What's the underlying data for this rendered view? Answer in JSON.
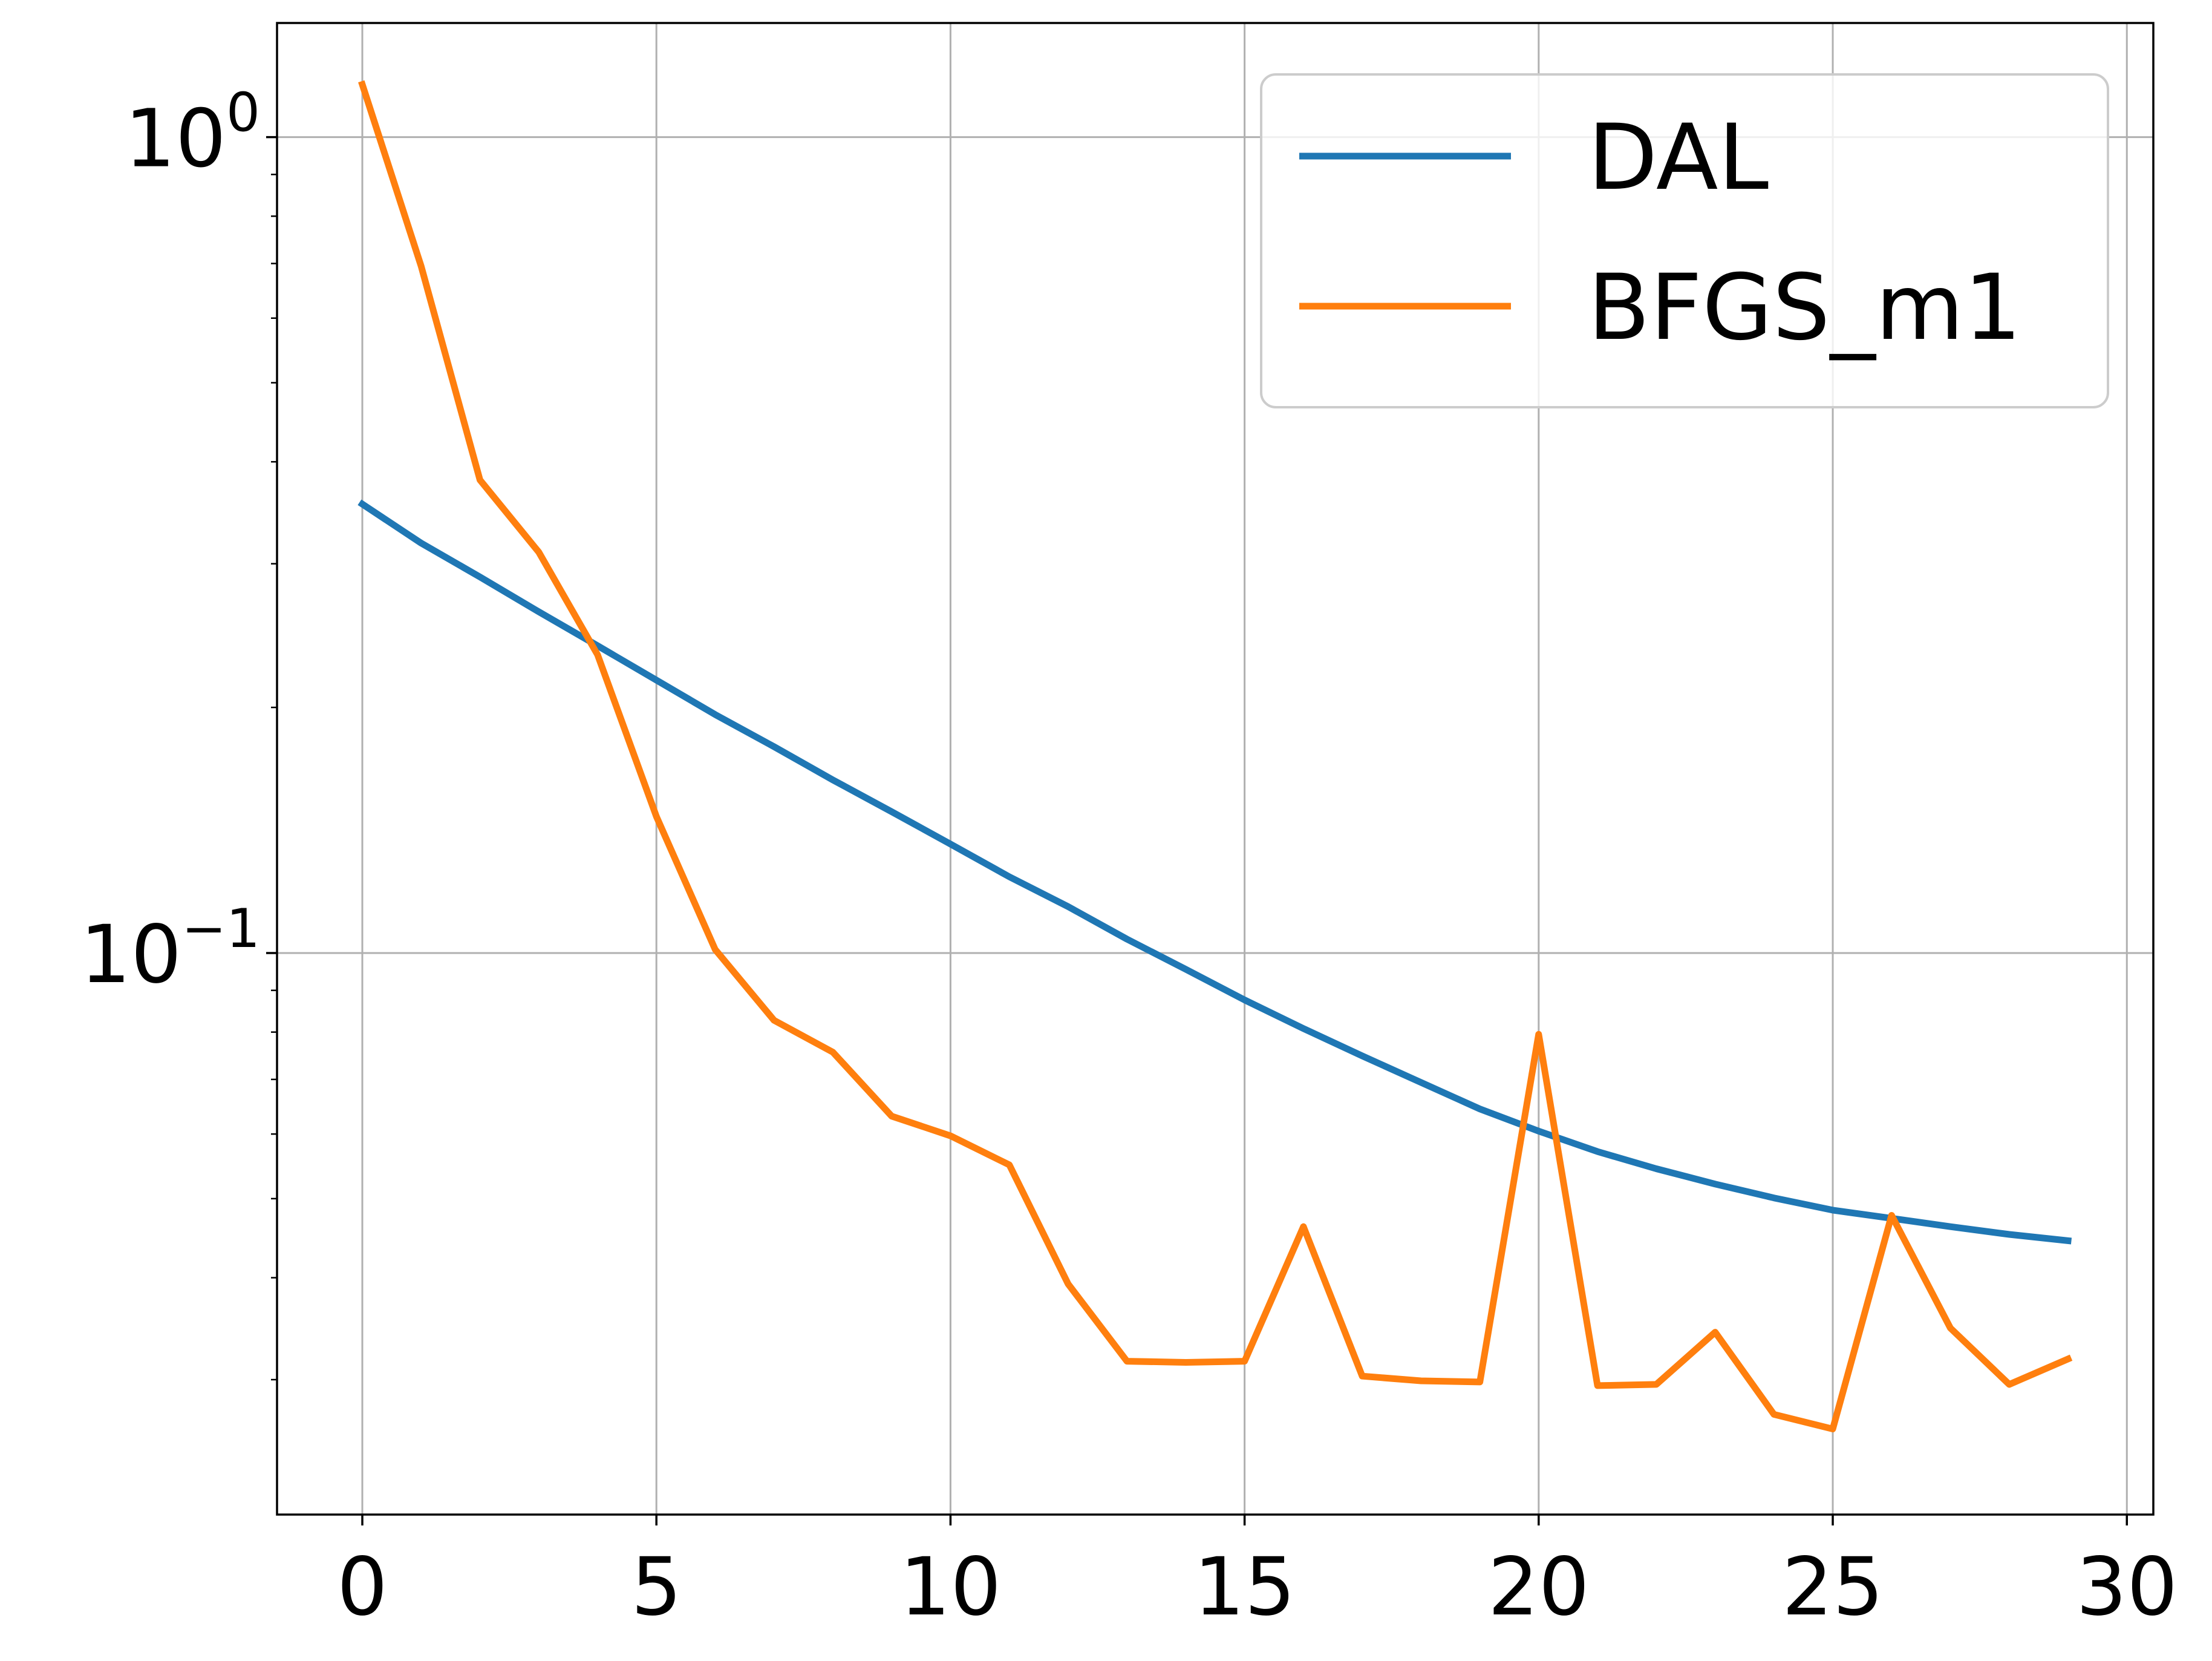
{
  "chart_data": {
    "type": "line",
    "title": "",
    "xlabel": "",
    "ylabel": "",
    "yscale": "log",
    "xlim": [
      -1.45,
      30.45
    ],
    "ylim": [
      0.0205,
      1.38
    ],
    "xticks": [
      0,
      5,
      10,
      15,
      20,
      25,
      30
    ],
    "xtick_labels": [
      "0",
      "5",
      "10",
      "15",
      "20",
      "25",
      "30"
    ],
    "yticks": [
      {
        "value": 1.0,
        "base": "10",
        "exponent": "0"
      },
      {
        "value": 0.1,
        "base": "10",
        "exponent": "−1"
      }
    ],
    "grid": true,
    "legend_position": "top-right",
    "x": [
      0,
      1,
      2,
      3,
      4,
      5,
      6,
      7,
      8,
      9,
      10,
      11,
      12,
      13,
      14,
      15,
      16,
      17,
      18,
      19,
      20,
      21,
      22,
      23,
      24,
      25,
      26,
      27,
      28,
      29
    ],
    "series": [
      {
        "name": "DAL",
        "color": "#1f77b4",
        "values": [
          0.355,
          0.318,
          0.289,
          0.262,
          0.238,
          0.216,
          0.196,
          0.179,
          0.163,
          0.149,
          0.136,
          0.124,
          0.114,
          0.104,
          0.0955,
          0.0876,
          0.0808,
          0.0748,
          0.0694,
          0.0644,
          0.0605,
          0.0571,
          0.0544,
          0.0521,
          0.0501,
          0.0484,
          0.0473,
          0.0462,
          0.0452,
          0.0444
        ]
      },
      {
        "name": "BFGS_m1",
        "color": "#ff7f0e",
        "values": [
          1.16,
          0.695,
          0.38,
          0.31,
          0.232,
          0.147,
          0.101,
          0.0827,
          0.0756,
          0.0631,
          0.0597,
          0.055,
          0.0393,
          0.0316,
          0.0315,
          0.0316,
          0.0462,
          0.0303,
          0.0299,
          0.0298,
          0.0795,
          0.0295,
          0.0296,
          0.0343,
          0.0272,
          0.0261,
          0.0477,
          0.0347,
          0.0296,
          0.0318
        ]
      }
    ]
  }
}
